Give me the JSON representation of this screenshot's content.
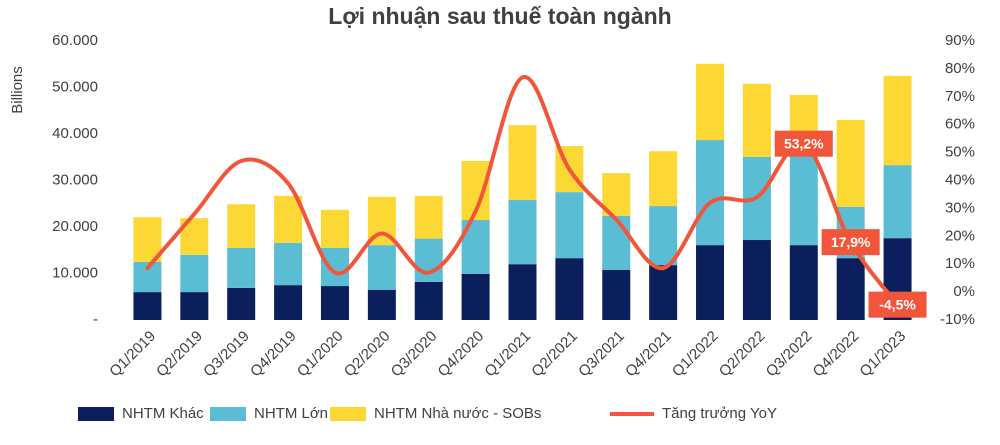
{
  "chart_data": {
    "type": "bar_line_combo",
    "title": "Lợi nhuận sau thuế toàn ngành",
    "y_label": "Billions",
    "categories": [
      "Q1/2019",
      "Q2/2019",
      "Q3/2019",
      "Q4/2019",
      "Q1/2020",
      "Q2/2020",
      "Q3/2020",
      "Q4/2020",
      "Q1/2021",
      "Q2/2021",
      "Q3/2021",
      "Q4/2021",
      "Q1/2022",
      "Q2/2022",
      "Q3/2022",
      "Q4/2022",
      "Q1/2023"
    ],
    "series": [
      {
        "name": "NHTM Khác",
        "color": "#0b1f5c",
        "type": "bar",
        "values": [
          6000,
          6000,
          6900,
          7500,
          7300,
          6500,
          8200,
          9900,
          12000,
          13300,
          10800,
          11800,
          16100,
          17200,
          16100,
          13300,
          17600
        ]
      },
      {
        "name": "NHTM Lớn",
        "color": "#5bbdd3",
        "type": "bar",
        "values": [
          6500,
          8000,
          8600,
          9100,
          8200,
          9600,
          9300,
          11600,
          13800,
          14200,
          11600,
          12700,
          22600,
          17900,
          23900,
          11000,
          15700
        ]
      },
      {
        "name": "NHTM Nhà nước - SOBs",
        "color": "#fdd835",
        "type": "bar",
        "values": [
          9600,
          7900,
          9400,
          10100,
          8200,
          10400,
          9200,
          12700,
          16100,
          9900,
          9200,
          11800,
          16400,
          15700,
          8400,
          18700,
          19200
        ]
      },
      {
        "name": "Tăng trưởng YoY",
        "color": "#f2563a",
        "type": "line",
        "axis": "y2",
        "values": [
          8.6,
          28,
          47,
          39,
          7,
          21,
          7,
          29,
          77,
          44,
          26,
          8.6,
          32,
          34,
          53.2,
          17.9,
          -4.5
        ],
        "value_labels": [
          null,
          null,
          null,
          null,
          null,
          null,
          null,
          null,
          null,
          null,
          null,
          null,
          null,
          null,
          "53,2%",
          "17,9%",
          "-4,5%"
        ]
      }
    ],
    "ylim": [
      0,
      60000
    ],
    "yticks": [
      {
        "value": 0,
        "label": "-"
      },
      {
        "value": 10000,
        "label": "10.000"
      },
      {
        "value": 20000,
        "label": "20.000"
      },
      {
        "value": 30000,
        "label": "30.000"
      },
      {
        "value": 40000,
        "label": "40.000"
      },
      {
        "value": 50000,
        "label": "50.000"
      },
      {
        "value": 60000,
        "label": "60.000"
      }
    ],
    "y2lim": [
      -10,
      90
    ],
    "y2ticks": [
      {
        "value": -10,
        "label": "-10%"
      },
      {
        "value": 0,
        "label": "0%"
      },
      {
        "value": 10,
        "label": "10%"
      },
      {
        "value": 20,
        "label": "20%"
      },
      {
        "value": 30,
        "label": "30%"
      },
      {
        "value": 40,
        "label": "40%"
      },
      {
        "value": 50,
        "label": "50%"
      },
      {
        "value": 60,
        "label": "60%"
      },
      {
        "value": 70,
        "label": "70%"
      },
      {
        "value": 80,
        "label": "80%"
      },
      {
        "value": 90,
        "label": "90%"
      }
    ],
    "legend": "bottom",
    "grid": false
  }
}
